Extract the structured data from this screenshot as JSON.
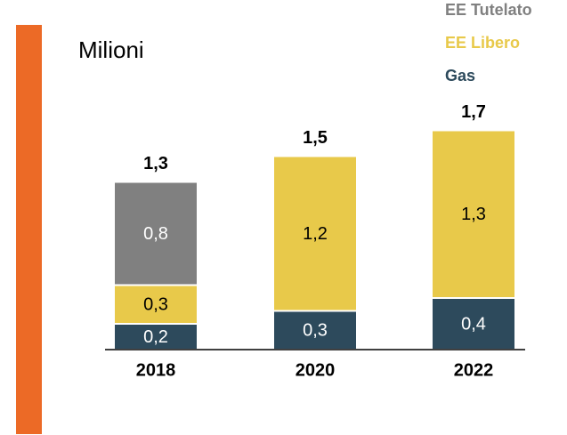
{
  "chart_data": {
    "type": "stacked_bar",
    "title": "Milioni",
    "categories": [
      "2018",
      "2020",
      "2022"
    ],
    "series": [
      {
        "name": "Gas",
        "color": "#2d4a5c",
        "values": [
          0.2,
          0.3,
          0.4
        ],
        "value_labels": [
          "0,2",
          "0,3",
          "0,4"
        ]
      },
      {
        "name": "EE Libero",
        "color": "#e8c94a",
        "values": [
          0.3,
          1.2,
          1.3
        ],
        "value_labels": [
          "0,3",
          "1,2",
          "1,3"
        ]
      },
      {
        "name": "EE Tutelato",
        "color": "#808080",
        "values": [
          0.8,
          null,
          null
        ],
        "value_labels": [
          "0,8",
          null,
          null
        ]
      }
    ],
    "totals": {
      "values": [
        1.3,
        1.5,
        1.7
      ],
      "value_labels": [
        "1,3",
        "1,5",
        "1,7"
      ]
    },
    "accent_color": "#ec6a26"
  }
}
